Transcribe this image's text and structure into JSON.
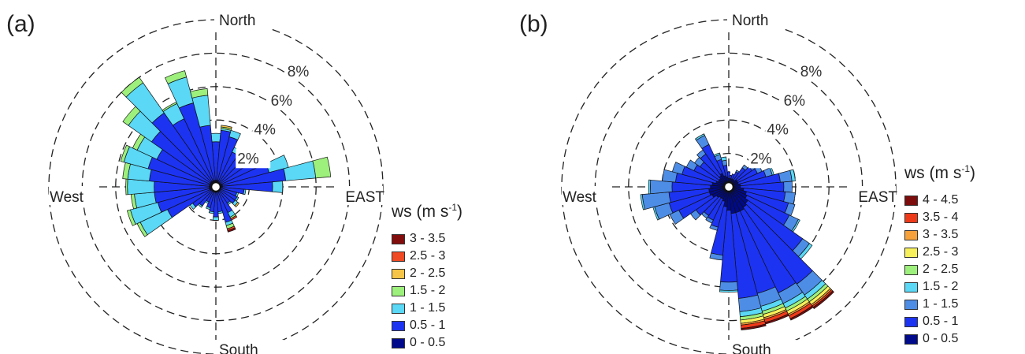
{
  "chart_data": [
    {
      "type": "polar-bar",
      "panel_label": "(a)",
      "direction_labels": {
        "north": "North",
        "south": "South",
        "east": "EAST",
        "west": "West"
      },
      "ring_labels": [
        "2%",
        "4%",
        "6%",
        "8%"
      ],
      "rmax": 10,
      "legend_title": "ws (m s",
      "legend_title_sup": "-1",
      "bins": [
        "0 - 0.5",
        "0.5 - 1",
        "1 - 1.5",
        "1.5 - 2",
        "2 - 2.5",
        "2.5 - 3",
        "3 - 3.5"
      ],
      "colors": [
        "#000a8a",
        "#1d33f2",
        "#5ad8f5",
        "#9ef07c",
        "#f6c547",
        "#ef4a23",
        "#820d0d"
      ],
      "direction_step_deg": 10,
      "sectors": [
        {
          "dir": 0,
          "values": [
            0.4,
            2.3,
            0.5,
            0,
            0,
            0,
            0
          ]
        },
        {
          "dir": 10,
          "values": [
            0.4,
            3.0,
            0.1,
            0.1,
            0.1,
            0,
            0
          ]
        },
        {
          "dir": 20,
          "values": [
            0.4,
            2.7,
            0.4,
            0,
            0,
            0,
            0
          ]
        },
        {
          "dir": 30,
          "values": [
            0.3,
            2.0,
            0.3,
            0,
            0,
            0,
            0
          ]
        },
        {
          "dir": 40,
          "values": [
            0.3,
            1.8,
            0.3,
            0,
            0,
            0,
            0
          ]
        },
        {
          "dir": 50,
          "values": [
            0.3,
            2.3,
            0.3,
            0,
            0,
            0,
            0
          ]
        },
        {
          "dir": 60,
          "values": [
            0.3,
            2.5,
            0.4,
            0,
            0,
            0,
            0
          ]
        },
        {
          "dir": 70,
          "values": [
            0.4,
            2.9,
            1.2,
            0,
            0,
            0,
            0
          ]
        },
        {
          "dir": 80,
          "values": [
            0.4,
            3.8,
            1.8,
            0.9,
            0,
            0,
            0
          ]
        },
        {
          "dir": 90,
          "values": [
            0.4,
            3.0,
            0.6,
            0,
            0,
            0,
            0
          ]
        },
        {
          "dir": 100,
          "values": [
            0.3,
            1.4,
            0.1,
            0,
            0,
            0,
            0
          ]
        },
        {
          "dir": 110,
          "values": [
            0.3,
            1.0,
            0.1,
            0,
            0,
            0,
            0
          ]
        },
        {
          "dir": 120,
          "values": [
            0.3,
            1.1,
            0.1,
            0,
            0,
            0,
            0
          ]
        },
        {
          "dir": 130,
          "values": [
            0.3,
            1.1,
            0.2,
            0,
            0.1,
            0,
            0
          ]
        },
        {
          "dir": 140,
          "values": [
            0.2,
            1.0,
            0.1,
            0,
            0,
            0,
            0
          ]
        },
        {
          "dir": 150,
          "values": [
            0.3,
            1.4,
            0.3,
            0.1,
            0,
            0.1,
            0
          ]
        },
        {
          "dir": 160,
          "values": [
            0.3,
            1.9,
            0.2,
            0.2,
            0,
            0.1,
            0.1
          ]
        },
        {
          "dir": 170,
          "values": [
            0.3,
            1.2,
            0.1,
            0,
            0,
            0,
            0
          ]
        },
        {
          "dir": 180,
          "values": [
            0.3,
            1.5,
            0.2,
            0,
            0,
            0,
            0
          ]
        },
        {
          "dir": 190,
          "values": [
            0.3,
            1.2,
            0.1,
            0,
            0,
            0,
            0
          ]
        },
        {
          "dir": 200,
          "values": [
            0.3,
            1.0,
            0.1,
            0,
            0,
            0,
            0
          ]
        },
        {
          "dir": 210,
          "values": [
            0.2,
            0.8,
            0.1,
            0,
            0,
            0,
            0
          ]
        },
        {
          "dir": 220,
          "values": [
            0.3,
            1.1,
            0.1,
            0,
            0,
            0,
            0
          ]
        },
        {
          "dir": 230,
          "values": [
            0.3,
            1.4,
            0.2,
            0,
            0,
            0,
            0
          ]
        },
        {
          "dir": 240,
          "values": [
            0.4,
            2.8,
            1.8,
            0.2,
            0,
            0,
            0
          ]
        },
        {
          "dir": 250,
          "values": [
            0.4,
            3.2,
            1.7,
            0.2,
            0,
            0,
            0
          ]
        },
        {
          "dir": 260,
          "values": [
            0.4,
            3.3,
            1.2,
            0.2,
            0,
            0,
            0
          ]
        },
        {
          "dir": 270,
          "values": [
            0.4,
            3.3,
            1.6,
            0.1,
            0,
            0,
            0
          ]
        },
        {
          "dir": 280,
          "values": [
            0.4,
            3.6,
            1.3,
            0.3,
            0,
            0,
            0
          ]
        },
        {
          "dir": 290,
          "values": [
            0.4,
            3.8,
            1.5,
            0.2,
            0,
            0,
            0
          ]
        },
        {
          "dir": 300,
          "values": [
            0.4,
            3.5,
            1.3,
            0.3,
            0,
            0,
            0
          ]
        },
        {
          "dir": 310,
          "values": [
            0.4,
            4.3,
            1.7,
            0.4,
            0,
            0,
            0
          ]
        },
        {
          "dir": 320,
          "values": [
            0.4,
            5.0,
            2.2,
            0.4,
            0,
            0,
            0
          ]
        },
        {
          "dir": 330,
          "values": [
            0.4,
            4.1,
            1.0,
            0.1,
            0,
            0,
            0
          ]
        },
        {
          "dir": 340,
          "values": [
            0.4,
            4.8,
            1.6,
            0.4,
            0,
            0,
            0
          ]
        },
        {
          "dir": 350,
          "values": [
            0.4,
            3.3,
            1.8,
            0.4,
            0,
            0,
            0
          ]
        }
      ]
    },
    {
      "type": "polar-bar",
      "panel_label": "(b)",
      "direction_labels": {
        "north": "North",
        "south": "South",
        "east": "EAST",
        "west": "West"
      },
      "ring_labels": [
        "2%",
        "4%",
        "6%",
        "8%"
      ],
      "rmax": 10,
      "legend_title": "ws (m s",
      "legend_title_sup": "-1",
      "bins": [
        "0 - 0.5",
        "0.5 - 1",
        "1 - 1.5",
        "1.5 - 2",
        "2 - 2.5",
        "2.5 - 3",
        "3 - 3.5",
        "3.5 - 4",
        "4 - 4.5"
      ],
      "colors": [
        "#000a8a",
        "#1d33f2",
        "#4d8de6",
        "#5ad8f5",
        "#9ef07c",
        "#f7f05a",
        "#f6a13a",
        "#ef3a1a",
        "#7d0d0d"
      ],
      "direction_step_deg": 10,
      "sectors": [
        {
          "dir": 0,
          "values": [
            0.5,
            0.4,
            0,
            0,
            0,
            0,
            0,
            0,
            0
          ]
        },
        {
          "dir": 10,
          "values": [
            0.5,
            0.2,
            0,
            0,
            0,
            0,
            0,
            0,
            0
          ]
        },
        {
          "dir": 20,
          "values": [
            0.5,
            0.3,
            0,
            0,
            0,
            0,
            0,
            0,
            0
          ]
        },
        {
          "dir": 30,
          "values": [
            0.5,
            0.5,
            0.1,
            0,
            0,
            0,
            0,
            0,
            0
          ]
        },
        {
          "dir": 40,
          "values": [
            0.5,
            0.9,
            0.2,
            0,
            0,
            0,
            0,
            0,
            0
          ]
        },
        {
          "dir": 50,
          "values": [
            0.6,
            1.1,
            0.2,
            0,
            0,
            0,
            0,
            0,
            0
          ]
        },
        {
          "dir": 60,
          "values": [
            0.6,
            1.3,
            0.3,
            0,
            0,
            0,
            0,
            0,
            0
          ]
        },
        {
          "dir": 70,
          "values": [
            0.6,
            1.7,
            0.4,
            0.1,
            0,
            0,
            0,
            0,
            0
          ]
        },
        {
          "dir": 80,
          "values": [
            0.7,
            2.4,
            0.7,
            0.2,
            0,
            0,
            0,
            0,
            0
          ]
        },
        {
          "dir": 90,
          "values": [
            0.7,
            2.6,
            0.5,
            0,
            0,
            0,
            0,
            0,
            0
          ]
        },
        {
          "dir": 100,
          "values": [
            0.9,
            2.5,
            0.6,
            0,
            0,
            0,
            0,
            0,
            0
          ]
        },
        {
          "dir": 110,
          "values": [
            1.1,
            2.6,
            0.4,
            0,
            0,
            0,
            0,
            0,
            0
          ]
        },
        {
          "dir": 120,
          "values": [
            1.2,
            2.8,
            0.6,
            0.1,
            0,
            0,
            0,
            0,
            0
          ]
        },
        {
          "dir": 130,
          "values": [
            1.4,
            4.0,
            0.5,
            0.2,
            0,
            0,
            0,
            0,
            0
          ]
        },
        {
          "dir": 140,
          "values": [
            1.5,
            5.6,
            0.8,
            0.3,
            0.2,
            0.2,
            0.1,
            0.1,
            0.1
          ]
        },
        {
          "dir": 150,
          "values": [
            1.6,
            5.4,
            0.7,
            0.3,
            0.2,
            0.2,
            0.1,
            0.2,
            0.1
          ]
        },
        {
          "dir": 160,
          "values": [
            1.6,
            5.0,
            0.8,
            0.3,
            0.2,
            0.2,
            0.1,
            0.2,
            0.1
          ]
        },
        {
          "dir": 170,
          "values": [
            1.6,
            5.1,
            0.8,
            0.3,
            0.2,
            0.2,
            0.1,
            0.2,
            0.1
          ]
        },
        {
          "dir": 180,
          "values": [
            1.4,
            4.3,
            0.5,
            0.1,
            0,
            0,
            0,
            0,
            0
          ]
        },
        {
          "dir": 190,
          "values": [
            1.2,
            2.9,
            0.3,
            0,
            0,
            0,
            0,
            0,
            0
          ]
        },
        {
          "dir": 200,
          "values": [
            0.9,
            1.6,
            0.2,
            0,
            0,
            0,
            0,
            0,
            0
          ]
        },
        {
          "dir": 210,
          "values": [
            0.8,
            1.4,
            0.2,
            0,
            0,
            0,
            0,
            0,
            0
          ]
        },
        {
          "dir": 220,
          "values": [
            0.8,
            1.3,
            0.2,
            0,
            0,
            0,
            0,
            0,
            0
          ]
        },
        {
          "dir": 230,
          "values": [
            0.9,
            1.5,
            0.4,
            0,
            0,
            0,
            0,
            0,
            0
          ]
        },
        {
          "dir": 240,
          "values": [
            1.1,
            2.2,
            0.6,
            0,
            0,
            0,
            0,
            0,
            0
          ]
        },
        {
          "dir": 250,
          "values": [
            1.2,
            2.5,
            0.9,
            0.1,
            0,
            0,
            0,
            0,
            0
          ]
        },
        {
          "dir": 260,
          "values": [
            1.2,
            2.4,
            1.6,
            0.1,
            0,
            0,
            0,
            0,
            0
          ]
        },
        {
          "dir": 270,
          "values": [
            1.1,
            2.3,
            1.3,
            0.1,
            0,
            0,
            0,
            0,
            0
          ]
        },
        {
          "dir": 280,
          "values": [
            1.0,
            2.2,
            0.8,
            0,
            0,
            0,
            0,
            0,
            0
          ]
        },
        {
          "dir": 290,
          "values": [
            0.8,
            2.1,
            0.6,
            0,
            0,
            0,
            0,
            0,
            0
          ]
        },
        {
          "dir": 300,
          "values": [
            0.7,
            1.6,
            0.5,
            0,
            0,
            0,
            0,
            0,
            0
          ]
        },
        {
          "dir": 310,
          "values": [
            0.7,
            1.4,
            0.4,
            0,
            0,
            0,
            0,
            0,
            0
          ]
        },
        {
          "dir": 320,
          "values": [
            0.8,
            1.6,
            0.3,
            0,
            0,
            0,
            0,
            0,
            0
          ]
        },
        {
          "dir": 330,
          "values": [
            0.9,
            1.9,
            0.6,
            0.1,
            0,
            0,
            0,
            0,
            0
          ]
        },
        {
          "dir": 340,
          "values": [
            0.7,
            1.0,
            0.3,
            0.1,
            0,
            0,
            0,
            0,
            0
          ]
        },
        {
          "dir": 350,
          "values": [
            0.6,
            0.7,
            0.3,
            0.2,
            0,
            0,
            0,
            0,
            0
          ]
        }
      ]
    }
  ]
}
